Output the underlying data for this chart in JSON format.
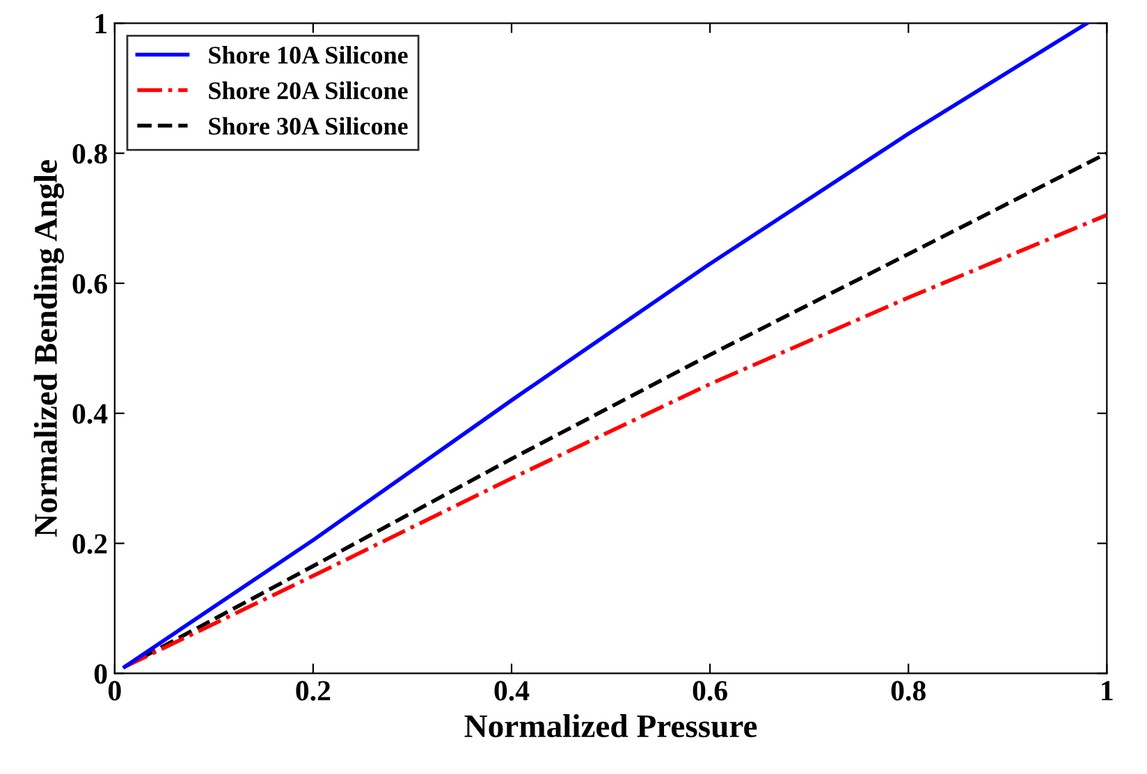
{
  "chart_data": {
    "type": "line",
    "xlabel": "Normalized Pressure",
    "ylabel": "Normalized Bending Angle",
    "xlim": [
      0,
      1
    ],
    "ylim": [
      0,
      1
    ],
    "xticks": [
      0,
      0.2,
      0.4,
      0.6,
      0.8,
      1
    ],
    "yticks": [
      0,
      0.2,
      0.4,
      0.6,
      0.8,
      1
    ],
    "grid": false,
    "legend": "top left",
    "marker": "none",
    "series": [
      {
        "name": "Shore 10A Silicone",
        "color": "#0000ff",
        "line_style": "solid",
        "x": [
          0.01,
          0.2,
          0.4,
          0.6,
          0.8,
          0.98
        ],
        "values": [
          0.01,
          0.205,
          0.42,
          0.63,
          0.83,
          1.0
        ]
      },
      {
        "name": "Shore 20A Silicone",
        "color": "#ff0000",
        "line_style": "dashdot",
        "x": [
          0.01,
          0.2,
          0.4,
          0.6,
          0.8,
          1.0
        ],
        "values": [
          0.01,
          0.15,
          0.3,
          0.445,
          0.578,
          0.705
        ]
      },
      {
        "name": "Shore 30A Silicone",
        "color": "#000000",
        "line_style": "dashed",
        "x": [
          0.01,
          0.2,
          0.4,
          0.6,
          0.8,
          1.0
        ],
        "values": [
          0.01,
          0.165,
          0.33,
          0.49,
          0.645,
          0.8
        ]
      }
    ]
  }
}
